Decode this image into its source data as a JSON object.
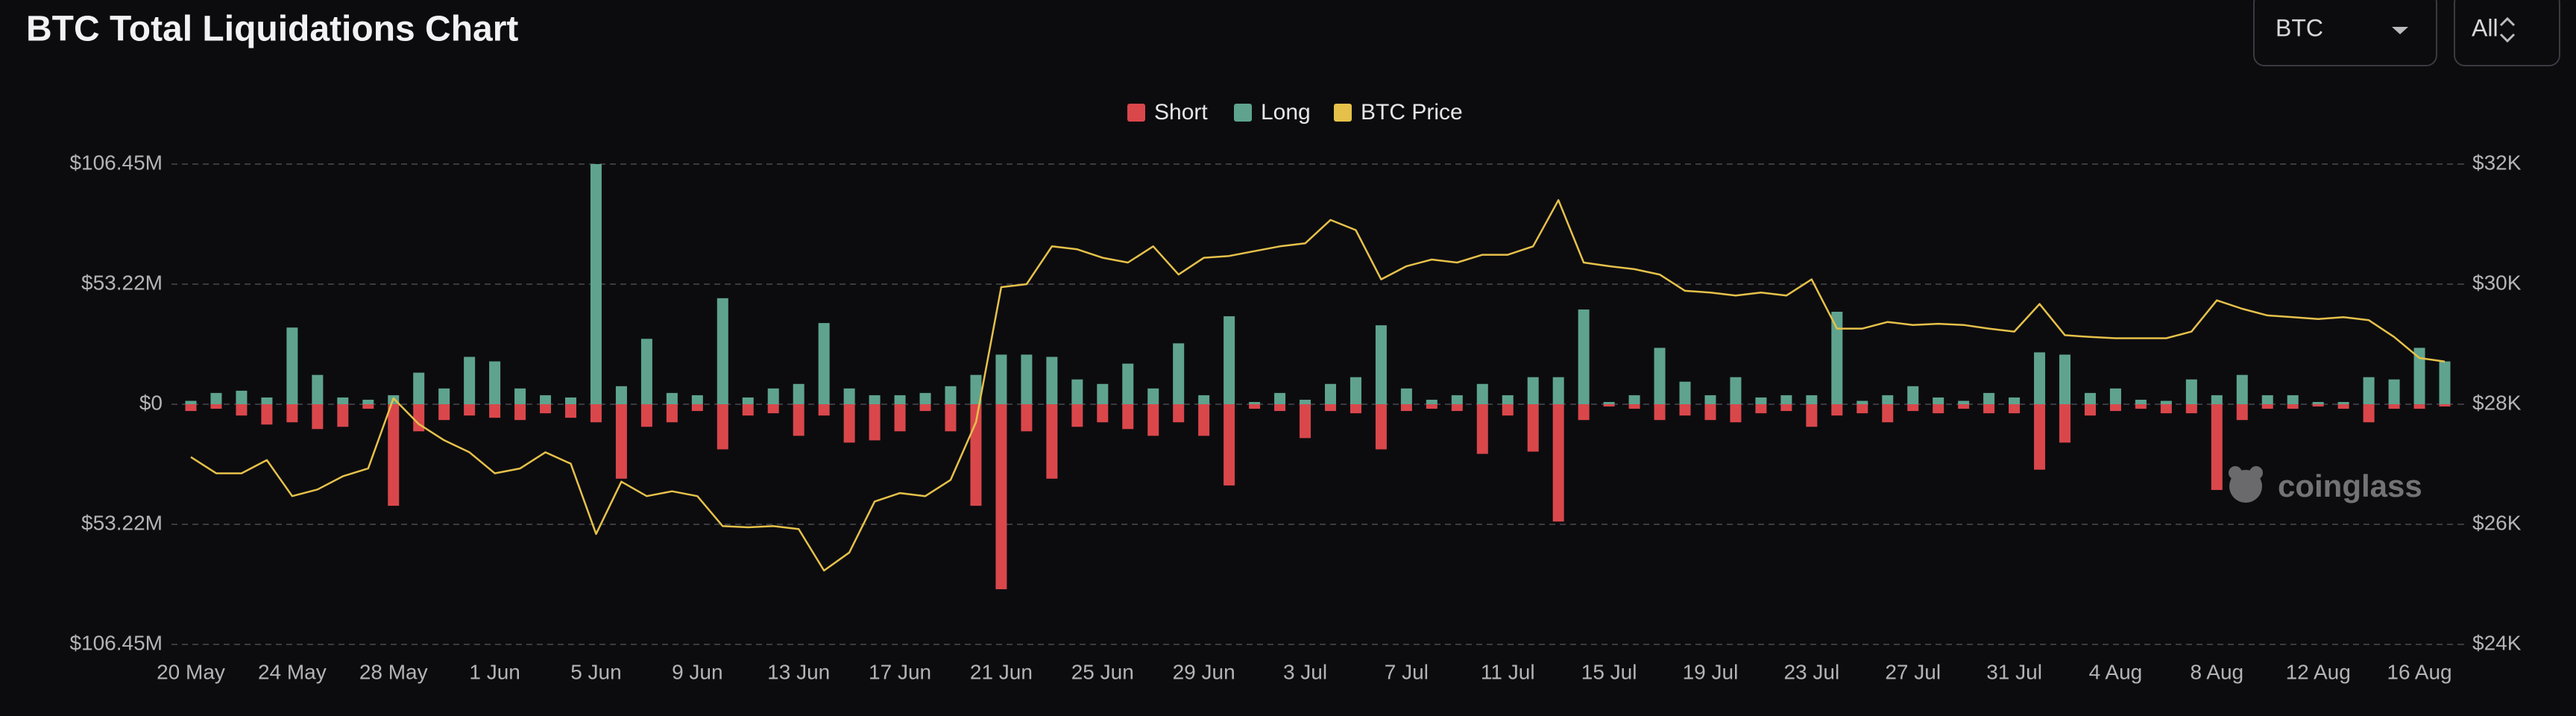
{
  "controls": {
    "coin": "BTC",
    "range": "All"
  },
  "chart_data": {
    "type": "bar",
    "title": "BTC Total Liquidations Chart",
    "watermark": "coinglass",
    "categories": [
      "20 May",
      null,
      null,
      null,
      "24 May",
      null,
      null,
      null,
      "28 May",
      null,
      null,
      null,
      "1 Jun",
      null,
      null,
      null,
      "5 Jun",
      null,
      null,
      null,
      "9 Jun",
      null,
      null,
      null,
      "13 Jun",
      null,
      null,
      null,
      "17 Jun",
      null,
      null,
      null,
      "21 Jun",
      null,
      null,
      null,
      "25 Jun",
      null,
      null,
      null,
      "29 Jun",
      null,
      null,
      null,
      "3 Jul",
      null,
      null,
      null,
      "7 Jul",
      null,
      null,
      null,
      "11 Jul",
      null,
      null,
      null,
      "15 Jul",
      null,
      null,
      null,
      "19 Jul",
      null,
      null,
      null,
      "23 Jul",
      null,
      null,
      null,
      "27 Jul",
      null,
      null,
      null,
      "31 Jul",
      null,
      null,
      null,
      "4 Aug",
      null,
      null,
      null,
      "8 Aug",
      null,
      null,
      null,
      "12 Aug",
      null,
      null,
      null,
      "16 Aug",
      null
    ],
    "series": [
      {
        "name": "Short",
        "color": "#d9474b",
        "values": [
          -3,
          -2,
          -5,
          -9,
          -8,
          -11,
          -10,
          -2,
          -45,
          -12,
          -7,
          -5,
          -6,
          -7,
          -4,
          -6,
          -8,
          -33,
          -10,
          -8,
          -3,
          -20,
          -5,
          -4,
          -14,
          -5,
          -17,
          -16,
          -12,
          -3,
          -12,
          -45,
          -82,
          -12,
          -33,
          -10,
          -8,
          -11,
          -14,
          -8,
          -14,
          -36,
          -2,
          -3,
          -15,
          -3,
          -4,
          -20,
          -3,
          -2,
          -3,
          -22,
          -5,
          -21,
          -52,
          -7,
          -1,
          -2,
          -7,
          -5,
          -7,
          -8,
          -4,
          -3,
          -10,
          -5,
          -4,
          -8,
          -3,
          -4,
          -2,
          -4,
          -4,
          -29,
          -17,
          -5,
          -3,
          -2,
          -4,
          -4,
          -38,
          -7,
          -2,
          -2,
          -1,
          -2,
          -8,
          -2,
          -2,
          -1
        ]
      },
      {
        "name": "Long",
        "color": "#5fa38f",
        "values": [
          1.5,
          5,
          6,
          3,
          34,
          13,
          3,
          2,
          4,
          14,
          7,
          21,
          19,
          7,
          4,
          3,
          106.45,
          8,
          29,
          5,
          4,
          47,
          3,
          7,
          9,
          36,
          7,
          4,
          4,
          5,
          8,
          13,
          22,
          22,
          21,
          11,
          9,
          18,
          7,
          27,
          4,
          39,
          1,
          5,
          2,
          9,
          12,
          35,
          7,
          2,
          4,
          9,
          4,
          12,
          12,
          42,
          1,
          4,
          25,
          10,
          4,
          12,
          3,
          4,
          4,
          41,
          1.5,
          4,
          8,
          3,
          1.5,
          5,
          3,
          23,
          22,
          5,
          7,
          2,
          1.5,
          11,
          4,
          13,
          4,
          4,
          1,
          1,
          12,
          11,
          25,
          19
        ]
      },
      {
        "name": "BTC Price",
        "color": "#e6c14a",
        "axis": "y2",
        "type": "line",
        "values": [
          27120,
          26850,
          26850,
          27070,
          26470,
          26580,
          26800,
          26930,
          28100,
          27670,
          27400,
          27200,
          26850,
          26930,
          27200,
          27010,
          25840,
          26710,
          26470,
          26550,
          26470,
          25970,
          25950,
          25970,
          25920,
          25230,
          25530,
          26380,
          26520,
          26470,
          26740,
          27700,
          29950,
          30000,
          30630,
          30580,
          30440,
          30360,
          30630,
          30160,
          30440,
          30470,
          30550,
          30630,
          30680,
          31070,
          30900,
          30080,
          30300,
          30410,
          30360,
          30490,
          30490,
          30630,
          31400,
          30360,
          30300,
          30250,
          30160,
          29890,
          29860,
          29810,
          29860,
          29810,
          30080,
          29260,
          29260,
          29370,
          29320,
          29340,
          29320,
          29260,
          29210,
          29670,
          29150,
          29120,
          29100,
          29100,
          29100,
          29210,
          29730,
          29590,
          29480,
          29450,
          29420,
          29450,
          29400,
          29120,
          28770,
          28710
        ]
      }
    ],
    "ylim": [
      -106.45,
      106.45
    ],
    "yticks": [
      {
        "value": 106.45,
        "label": "$106.45M"
      },
      {
        "value": 53.22,
        "label": "$53.22M"
      },
      {
        "value": 0,
        "label": "$0"
      },
      {
        "value": -53.22,
        "label": "$53.22M"
      },
      {
        "value": -106.45,
        "label": "$106.45M"
      }
    ],
    "y2lim": [
      24000,
      32000
    ],
    "y2ticks": [
      {
        "value": 32000,
        "label": "$32K"
      },
      {
        "value": 30000,
        "label": "$30K"
      },
      {
        "value": 28000,
        "label": "$28K"
      },
      {
        "value": 26000,
        "label": "$26K"
      },
      {
        "value": 24000,
        "label": "$24K"
      }
    ],
    "grid": true,
    "legend": "top"
  }
}
